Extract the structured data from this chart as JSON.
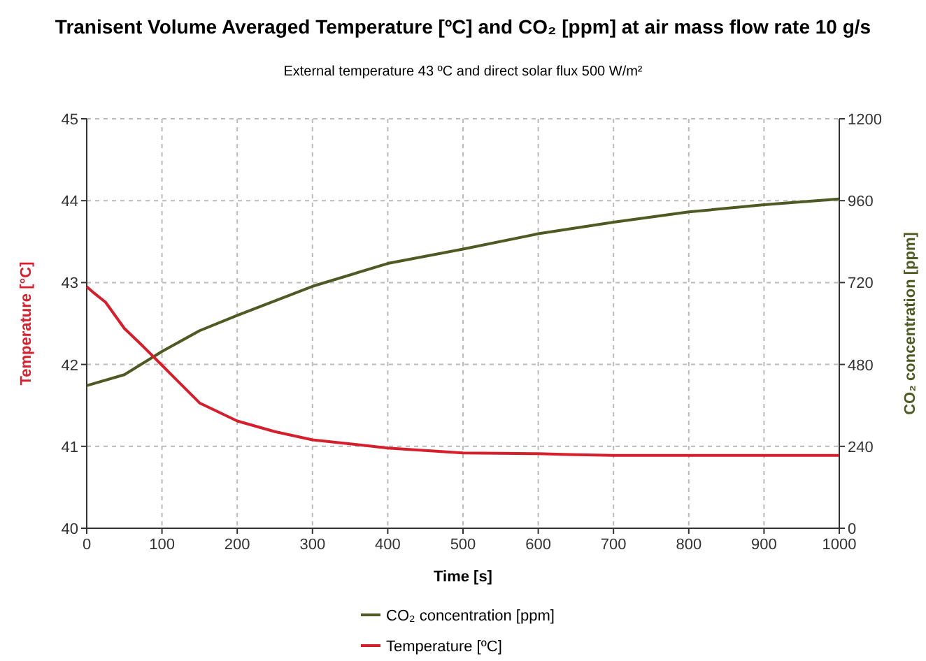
{
  "chart_data": {
    "type": "line",
    "title": "Tranisent Volume Averaged Temperature [ºC] and CO₂  [ppm] at air mass flow rate 10 g/s",
    "subtitle": "External temperature 43 ºC and direct solar flux 500 W/m²",
    "xlabel": "Time [s]",
    "ylabel": "Temperature [°C]",
    "y2label": "CO₂ concentration [ppm]",
    "x": [
      0,
      10,
      25,
      50,
      75,
      100,
      150,
      200,
      250,
      300,
      400,
      500,
      600,
      640,
      700,
      800,
      900,
      1000
    ],
    "xlim": [
      0,
      1000
    ],
    "xticks": [
      0,
      100,
      200,
      300,
      400,
      500,
      600,
      700,
      800,
      900,
      1000
    ],
    "ylim": [
      40,
      45
    ],
    "yticks": [
      40,
      41,
      42,
      43,
      44,
      45
    ],
    "y2lim": [
      0,
      1200
    ],
    "y2ticks": [
      0,
      240,
      480,
      720,
      960,
      1200
    ],
    "grid": true,
    "legend": "bottom",
    "line_style": "solid",
    "marker": "none",
    "series": [
      {
        "name": "CO₂ concentration [ppm]",
        "color": "#4d5a22",
        "axis": "y2",
        "x": [
          0,
          50,
          100,
          150,
          200,
          300,
          400,
          500,
          600,
          700,
          800,
          900,
          1000
        ],
        "values": [
          418,
          450,
          518,
          579,
          624,
          709,
          776,
          818,
          863,
          897,
          927,
          948,
          965
        ]
      },
      {
        "name": "Temperature [ºC]",
        "color": "#d61f2c",
        "axis": "y",
        "values": [
          42.95,
          42.87,
          42.76,
          42.44,
          42.22,
          41.99,
          41.53,
          41.31,
          41.18,
          41.08,
          40.98,
          40.92,
          40.91,
          40.9,
          40.89,
          40.89,
          40.89,
          40.89
        ]
      }
    ]
  }
}
